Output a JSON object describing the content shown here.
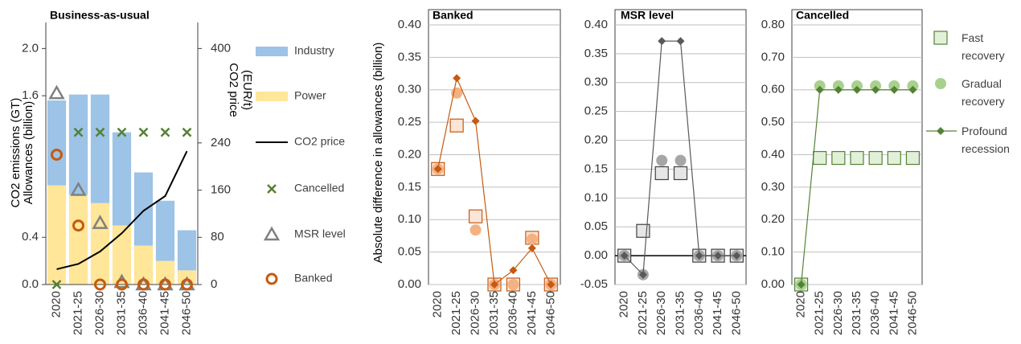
{
  "chart_data": [
    {
      "type": "bar",
      "title": "Business-as-usual",
      "ylabel": [
        "CO2 emissions (GT)",
        "Allowances (billion)"
      ],
      "y2label": [
        "CO2 price",
        "(EUR/t)"
      ],
      "categories": [
        "2020",
        "2021-25",
        "2026-30",
        "2031-35",
        "2036-40",
        "2041-45",
        "2046-50"
      ],
      "ylim": [
        0,
        2.2
      ],
      "yticks": [
        {
          "value": 0,
          "label": "0.0"
        },
        0.4,
        1.6,
        {
          "value": 2,
          "label": "2.0"
        }
      ],
      "y2lim": [
        0,
        440
      ],
      "y2ticks": [
        0,
        80,
        160,
        240,
        400
      ],
      "stacked": true,
      "legend": "right",
      "series": [
        {
          "name": "Industry",
          "type": "bar",
          "color": "#9dc3e6",
          "values": [
            0.72,
            0.85,
            0.92,
            0.79,
            0.62,
            0.51,
            0.34
          ]
        },
        {
          "name": "Power",
          "type": "bar",
          "color": "#ffe699",
          "values": [
            0.84,
            0.76,
            0.69,
            0.5,
            0.33,
            0.2,
            0.12
          ]
        },
        {
          "name": "CO2 price",
          "type": "line",
          "axis": "y2",
          "color": "#000000",
          "values": [
            26,
            35,
            56,
            87,
            125,
            150,
            226
          ]
        },
        {
          "name": "Cancelled",
          "type": "scatter",
          "marker": "x",
          "color": "#548235",
          "values": [
            0,
            1.29,
            1.29,
            1.29,
            1.29,
            1.29,
            1.29
          ]
        },
        {
          "name": "MSR level",
          "type": "scatter",
          "marker": "triangle",
          "fill": "none",
          "color": "#808080",
          "values": [
            1.62,
            0.8,
            0.52,
            0.02,
            0,
            0,
            0
          ]
        },
        {
          "name": "Banked",
          "type": "scatter",
          "marker": "circle",
          "fill": "none",
          "color": "#c55a11",
          "values": [
            1.1,
            0.5,
            0,
            0,
            0,
            0,
            0
          ]
        }
      ]
    },
    {
      "type": "line",
      "title": "Banked",
      "ylabel": "Absolute difference in allowances (billion)",
      "categories": [
        "2020",
        "2021-25",
        "2026-30",
        "2031-35",
        "2036-40",
        "2041-45",
        "2046-50"
      ],
      "ylim": [
        0,
        0.4
      ],
      "grid": true,
      "yticks": [
        {
          "value": 0,
          "label": "0.00"
        },
        {
          "value": 0.05,
          "label": "0.05"
        },
        {
          "value": 0.1,
          "label": "0.10"
        },
        {
          "value": 0.15,
          "label": "0.15"
        },
        {
          "value": 0.2,
          "label": "0.20"
        },
        {
          "value": 0.25,
          "label": "0.25"
        },
        {
          "value": 0.3,
          "label": "0.30"
        },
        {
          "value": 0.35,
          "label": "0.35"
        },
        {
          "value": 0.4,
          "label": "0.40"
        }
      ],
      "series": [
        {
          "marker": "square",
          "color": "#fbe5d6",
          "edge_color": "#c55a11",
          "line": false,
          "values": [
            0.178,
            0.245,
            0.105,
            0,
            0,
            0.072,
            0
          ]
        },
        {
          "marker": "circle",
          "color": "#f4b183",
          "line": false,
          "values": [
            0.178,
            0.295,
            0.084,
            0,
            0,
            0.07,
            0
          ]
        },
        {
          "marker": "diamond",
          "color": "#c55a11",
          "line": true,
          "values": [
            0.178,
            0.318,
            0.252,
            0,
            0.022,
            0.056,
            0
          ]
        }
      ]
    },
    {
      "type": "line",
      "title": "MSR level",
      "categories": [
        "2020",
        "2021-25",
        "2026-30",
        "2031-35",
        "2036-40",
        "2041-45",
        "2046-50"
      ],
      "ylim": [
        -0.05,
        0.4
      ],
      "grid": true,
      "yticks": [
        {
          "value": -0.05,
          "label": "-0.05"
        },
        {
          "value": 0,
          "label": "0.00"
        },
        {
          "value": 0.05,
          "label": "0.05"
        },
        {
          "value": 0.1,
          "label": "0.10"
        },
        {
          "value": 0.15,
          "label": "0.15"
        },
        {
          "value": 0.2,
          "label": "0.20"
        },
        {
          "value": 0.25,
          "label": "0.25"
        },
        {
          "value": 0.3,
          "label": "0.30"
        },
        {
          "value": 0.35,
          "label": "0.35"
        },
        {
          "value": 0.4,
          "label": "0.40"
        }
      ],
      "series": [
        {
          "marker": "square",
          "color": "#e7e6e6",
          "edge_color": "#404040",
          "line": false,
          "values": [
            0,
            0.043,
            0.143,
            0.143,
            0,
            0,
            0
          ]
        },
        {
          "marker": "circle",
          "color": "#a6a6a6",
          "line": false,
          "values": [
            0,
            -0.033,
            0.165,
            0.165,
            0,
            0,
            0
          ]
        },
        {
          "marker": "diamond",
          "color": "#595959",
          "line": true,
          "values": [
            0,
            -0.033,
            0.372,
            0.372,
            0,
            0,
            0
          ]
        }
      ]
    },
    {
      "type": "line",
      "title": "Cancelled",
      "legend": "right",
      "categories": [
        "2020",
        "2021-25",
        "2026-30",
        "2031-35",
        "2036-40",
        "2041-45",
        "2046-50"
      ],
      "ylim": [
        0,
        0.8
      ],
      "grid": true,
      "yticks": [
        {
          "value": 0,
          "label": "0.00"
        },
        {
          "value": 0.1,
          "label": "0.10"
        },
        {
          "value": 0.2,
          "label": "0.20"
        },
        {
          "value": 0.3,
          "label": "0.30"
        },
        {
          "value": 0.4,
          "label": "0.40"
        },
        {
          "value": 0.5,
          "label": "0.50"
        },
        {
          "value": 0.6,
          "label": "0.60"
        },
        {
          "value": 0.7,
          "label": "0.70"
        },
        {
          "value": 0.8,
          "label": "0.80"
        }
      ],
      "series": [
        {
          "name": "Fast recovery",
          "marker": "square",
          "color": "#e2f0d9",
          "edge_color": "#548235",
          "line": false,
          "values": [
            0,
            0.39,
            0.39,
            0.39,
            0.39,
            0.39,
            0.39
          ]
        },
        {
          "name": "Gradual recovery",
          "marker": "circle",
          "color": "#a9d18e",
          "line": false,
          "values": [
            0,
            0.612,
            0.612,
            0.612,
            0.612,
            0.612,
            0.612
          ]
        },
        {
          "name": "Profound recession",
          "marker": "diamond",
          "color": "#548235",
          "line": true,
          "values": [
            0,
            0.6,
            0.6,
            0.6,
            0.6,
            0.6,
            0.6
          ]
        }
      ]
    }
  ]
}
